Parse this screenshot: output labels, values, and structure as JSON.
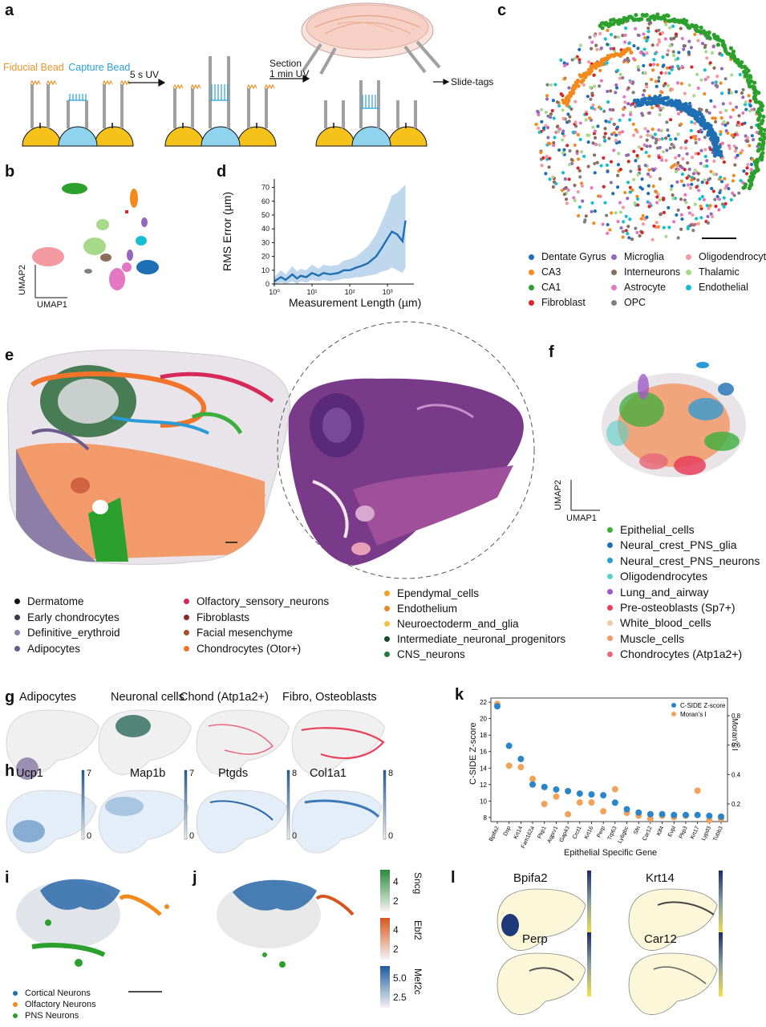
{
  "panels": {
    "a": {
      "letter": "a",
      "fiducial_label": "Fiducial Bead",
      "capture_label": "Capture Bead",
      "step1": "5 s UV",
      "step2_line1": "Section",
      "step2_line2": "1 min UV",
      "result": "Slide-tags",
      "colors": {
        "fiducial": "#e8962a",
        "capture": "#2aa0d8",
        "bead_fiducial": "#f4c21b",
        "bead_capture": "#8fd3ee"
      }
    },
    "b": {
      "letter": "b",
      "axis_y": "UMAP2",
      "axis_x": "UMAP1"
    },
    "c": {
      "letter": "c",
      "legend": [
        {
          "name": "Dentate Gyrus",
          "color": "#1f6fb4"
        },
        {
          "name": "Microglia",
          "color": "#9467bd"
        },
        {
          "name": "Oligodendrocyte",
          "color": "#f29aa0"
        },
        {
          "name": "CA3",
          "color": "#f28a1e"
        },
        {
          "name": "Interneurons",
          "color": "#8c6d5a"
        },
        {
          "name": "Thalamic",
          "color": "#a6d98a"
        },
        {
          "name": "CA1",
          "color": "#2ca02c"
        },
        {
          "name": "Astrocyte",
          "color": "#e377c2"
        },
        {
          "name": "Endothelial",
          "color": "#17becf"
        },
        {
          "name": "Fibroblast",
          "color": "#d62728"
        },
        {
          "name": "OPC",
          "color": "#7f7f7f"
        }
      ]
    },
    "d": {
      "letter": "d",
      "chart_data": {
        "type": "line",
        "xlabel": "Measurement Length (µm)",
        "ylabel": "RMS Error (µm)",
        "x_scale": "log",
        "xlim": [
          1,
          5000
        ],
        "ylim": [
          0,
          75
        ],
        "yticks": [
          "0",
          "10",
          "20",
          "30",
          "40",
          "50",
          "60",
          "70"
        ],
        "xticks": [
          "10⁰",
          "10¹",
          "10²",
          "10³"
        ],
        "series": [
          {
            "x": [
              1,
              1.5,
              2,
              3,
              4,
              5,
              7,
              10,
              15,
              20,
              30,
              50,
              70,
              100,
              150,
              200,
              300,
              500,
              700,
              1000,
              1300,
              1800,
              2500,
              3000
            ],
            "y": [
              2,
              5,
              3,
              7,
              4,
              6,
              5,
              8,
              6,
              8,
              7,
              8,
              10,
              10,
              12,
              13,
              15,
              20,
              26,
              33,
              38,
              36,
              31,
              46
            ],
            "lower": [
              0,
              1,
              0,
              2,
              0,
              2,
              1,
              3,
              2,
              3,
              2,
              3,
              4,
              4,
              5,
              5,
              6,
              7,
              9,
              10,
              12,
              10,
              8,
              12
            ],
            "upper": [
              5,
              10,
              7,
              13,
              9,
              11,
              10,
              14,
              11,
              14,
              13,
              14,
              17,
              18,
              20,
              23,
              27,
              36,
              45,
              55,
              64,
              66,
              70,
              72
            ]
          }
        ],
        "color": "#1f6fb4"
      }
    },
    "e": {
      "letter": "e",
      "legend_col1": [
        {
          "name": "Dermatome",
          "color": "#111111"
        },
        {
          "name": "Early chondrocytes",
          "color": "#3a3a4a"
        },
        {
          "name": "Definitive_erythroid",
          "color": "#8c7ea6"
        },
        {
          "name": "Adipocytes",
          "color": "#6b5a8c"
        }
      ],
      "legend_col2": [
        {
          "name": "Olfactory_sensory_neurons",
          "color": "#d6285a"
        },
        {
          "name": "Fibroblasts",
          "color": "#8a2a2a"
        },
        {
          "name": "Facial mesenchyme",
          "color": "#a0522d"
        },
        {
          "name": "Chondrocytes (Otor+)",
          "color": "#f0732a"
        }
      ],
      "legend_col3": [
        {
          "name": "Ependymal_cells",
          "color": "#f2a02a"
        },
        {
          "name": "Endothelium",
          "color": "#e8862a"
        },
        {
          "name": "Neuroectoderm_and_glia",
          "color": "#f2c23a"
        },
        {
          "name": "Intermediate_neuronal_progenitors",
          "color": "#1e4a2a"
        },
        {
          "name": "CNS_neurons",
          "color": "#2a7a3a"
        }
      ]
    },
    "f": {
      "letter": "f",
      "axis_y": "UMAP2",
      "axis_x": "UMAP1",
      "legend": [
        {
          "name": "Epithelial_cells",
          "color": "#3cae3c"
        },
        {
          "name": "Neural_crest_PNS_glia",
          "color": "#1f6fb4"
        },
        {
          "name": "Neural_crest_PNS_neurons",
          "color": "#2a9ad8"
        },
        {
          "name": "Oligodendrocytes",
          "color": "#5ad0c8"
        },
        {
          "name": "Lung_and_airway",
          "color": "#a05ac8"
        },
        {
          "name": "Pre-osteoblasts (Sp7+)",
          "color": "#e8405a"
        },
        {
          "name": "White_blood_cells",
          "color": "#f2c8a8"
        },
        {
          "name": "Muscle_cells",
          "color": "#f29a6a"
        },
        {
          "name": "Chondrocytes (Atp1a2+)",
          "color": "#e86a7a"
        }
      ]
    },
    "g": {
      "letter": "g",
      "titles": [
        "Adipocytes",
        "Neuronal cells",
        "Chond (Atp1a2+)",
        "Fibro, Osteoblasts"
      ]
    },
    "h": {
      "letter": "h",
      "genes": [
        {
          "name": "Ucp1",
          "max": "7",
          "min": "0"
        },
        {
          "name": "Map1b",
          "max": "7",
          "min": "0"
        },
        {
          "name": "Ptgds",
          "max": "8",
          "min": "0"
        },
        {
          "name": "Col1a1",
          "max": "8",
          "min": "0"
        }
      ]
    },
    "i": {
      "letter": "i",
      "legend": [
        {
          "name": "Cortical Neurons",
          "color": "#1f6fb4"
        },
        {
          "name": "Olfactory Neurons",
          "color": "#f28a1e"
        },
        {
          "name": "PNS Neurons",
          "color": "#2ca02c"
        }
      ]
    },
    "j": {
      "letter": "j",
      "colorbars": [
        {
          "name": "Sncg",
          "ticks": [
            "4",
            "2"
          ],
          "color": "#2a8a3a"
        },
        {
          "name": "Ebf2",
          "ticks": [
            "4",
            "2"
          ],
          "color": "#d8561e"
        },
        {
          "name": "Mef2c",
          "ticks": [
            "5.0",
            "2.5"
          ],
          "color": "#1f5aa0"
        }
      ]
    },
    "k": {
      "letter": "k",
      "chart_data": {
        "type": "scatter",
        "xlabel": "Epithelial Specific Gene",
        "ylabel": "C-SIDE Z-score",
        "y2label": "Moran's I",
        "ylim": [
          7.5,
          22.5
        ],
        "y2lim": [
          0.08,
          0.92
        ],
        "yticks": [
          "8",
          "10",
          "12",
          "14",
          "16",
          "18",
          "20",
          "22"
        ],
        "y2ticks": [
          "0.2",
          "0.4",
          "0.6",
          "0.8"
        ],
        "legend": [
          "C-SIDE Z-score",
          "Moran's I"
        ],
        "categories": [
          "Bpifa2",
          "Dsp",
          "Krt14",
          "Fam162a",
          "Pkp1",
          "Aqprv1",
          "Gap43",
          "Crct1",
          "Krt16",
          "Perp",
          "Trp63",
          "Ly6gbc",
          "Sfn",
          "Car12",
          "Klf4",
          "Evpl",
          "Pkp3",
          "Krt17",
          "Lypd3",
          "Tubb3"
        ],
        "series": [
          {
            "name": "C-SIDE Z-score",
            "color": "#2a86c8",
            "values": [
              21.5,
              16.7,
              15.1,
              12.0,
              11.7,
              11.4,
              11.2,
              10.9,
              10.8,
              10.7,
              9.8,
              9.0,
              8.6,
              8.4,
              8.4,
              8.3,
              8.3,
              8.3,
              8.2,
              8.1
            ]
          },
          {
            "name": "Moran's I",
            "color": "#f2a25a",
            "values": [
              0.88,
              0.46,
              0.45,
              0.37,
              0.2,
              0.25,
              0.13,
              0.21,
              0.21,
              0.15,
              0.3,
              0.14,
              0.12,
              0.1,
              0.12,
              0.11,
              0.12,
              0.29,
              0.09,
              0.1
            ]
          }
        ]
      }
    },
    "l": {
      "letter": "l",
      "genes": [
        "Bpifa2",
        "Krt14",
        "Perp",
        "Car12"
      ]
    }
  }
}
